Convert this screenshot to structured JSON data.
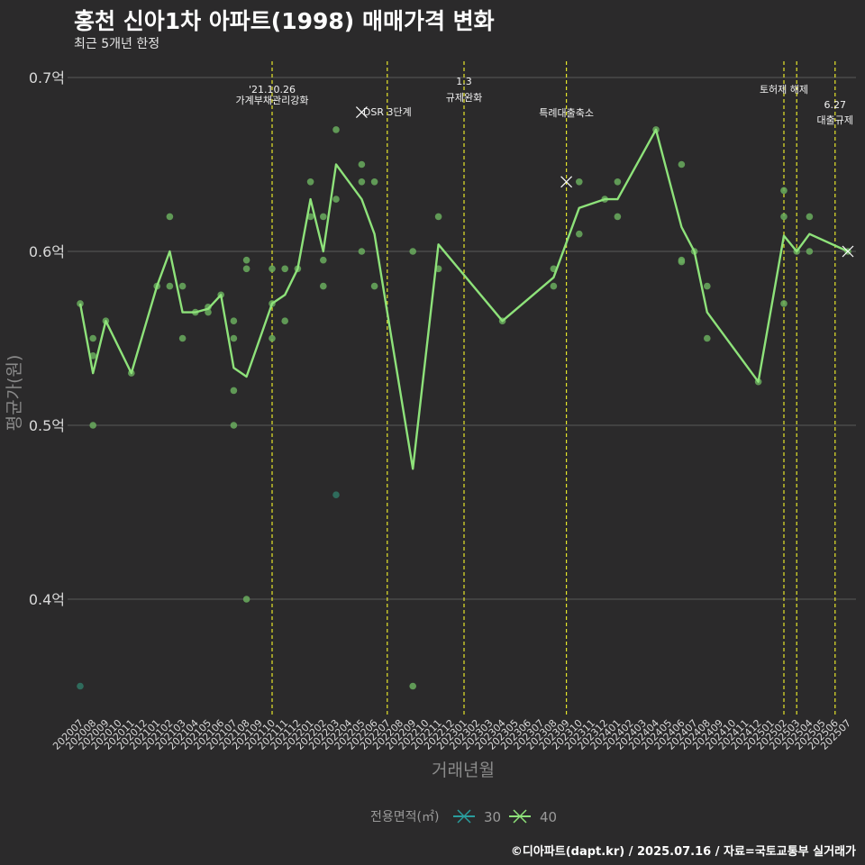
{
  "header": {
    "title": "홍천 신아1차 아파트(1998) 매매가격 변화",
    "subtitle": "최근 5개년 한정",
    "caption": "©디아파트(dapt.kr) / 2025.07.16 / 자료=국토교통부 실거래가"
  },
  "colors": {
    "background": "#2b2a2b",
    "grid": "#5a5a5a",
    "event_line": "#e6e62a",
    "series_30": "#2a9d9d",
    "series_40": "#8ee27a",
    "point_30": "#2f6f5f",
    "point_40": "#6aad5e"
  },
  "chart_data": {
    "type": "line",
    "title": "홍천 신아1차 아파트(1998) 매매가격 변화",
    "xlabel": "거래년월",
    "ylabel": "평균가(원)",
    "ylim": [
      0.33,
      0.71
    ],
    "yticks": [
      {
        "value": 0.4,
        "label": "0.4억"
      },
      {
        "value": 0.5,
        "label": "0.5억"
      },
      {
        "value": 0.6,
        "label": "0.6억"
      },
      {
        "value": 0.7,
        "label": "0.7억"
      }
    ],
    "categories": [
      "202007",
      "202008",
      "202009",
      "202010",
      "202011",
      "202012",
      "202101",
      "202102",
      "202103",
      "202104",
      "202105",
      "202106",
      "202107",
      "202108",
      "202109",
      "202110",
      "202111",
      "202112",
      "202201",
      "202202",
      "202203",
      "202204",
      "202205",
      "202206",
      "202207",
      "202208",
      "202209",
      "202210",
      "202211",
      "202212",
      "202301",
      "202302",
      "202303",
      "202304",
      "202305",
      "202306",
      "202307",
      "202308",
      "202309",
      "202310",
      "202311",
      "202312",
      "202401",
      "202402",
      "202403",
      "202404",
      "202405",
      "202406",
      "202407",
      "202408",
      "202409",
      "202410",
      "202411",
      "202412",
      "202501",
      "202502",
      "202503",
      "202504",
      "202505",
      "202506",
      "202507"
    ],
    "legend": {
      "title": "전용면적(㎡)",
      "items": [
        {
          "name": "30",
          "color": "#2a9d9d"
        },
        {
          "name": "40",
          "color": "#8ee27a"
        }
      ]
    },
    "series": [
      {
        "name": "40",
        "line": [
          [
            "202007",
            0.57
          ],
          [
            "202008",
            0.53
          ],
          [
            "202009",
            0.56
          ],
          [
            "202011",
            0.53
          ],
          [
            "202101",
            0.58
          ],
          [
            "202102",
            0.6
          ],
          [
            "202103",
            0.565
          ],
          [
            "202104",
            0.565
          ],
          [
            "202105",
            0.567
          ],
          [
            "202106",
            0.575
          ],
          [
            "202107",
            0.533
          ],
          [
            "202108",
            0.528
          ],
          [
            "202110",
            0.57
          ],
          [
            "202111",
            0.575
          ],
          [
            "202112",
            0.59
          ],
          [
            "202201",
            0.63
          ],
          [
            "202202",
            0.6
          ],
          [
            "202203",
            0.65
          ],
          [
            "202205",
            0.63
          ],
          [
            "202206",
            0.61
          ],
          [
            "202209",
            0.475
          ],
          [
            "202211",
            0.604
          ],
          [
            "202304",
            0.56
          ],
          [
            "202308",
            0.585
          ],
          [
            "202310",
            0.625
          ],
          [
            "202312",
            0.63
          ],
          [
            "202401",
            0.63
          ],
          [
            "202404",
            0.67
          ],
          [
            "202406",
            0.614
          ],
          [
            "202407",
            0.6
          ],
          [
            "202408",
            0.565
          ],
          [
            "202412",
            0.525
          ],
          [
            "202502",
            0.609
          ],
          [
            "202503",
            0.6
          ],
          [
            "202504",
            0.61
          ],
          [
            "202507",
            0.6
          ]
        ],
        "points": [
          [
            "202007",
            0.57
          ],
          [
            "202008",
            0.55
          ],
          [
            "202008",
            0.54
          ],
          [
            "202008",
            0.5
          ],
          [
            "202009",
            0.56
          ],
          [
            "202011",
            0.53
          ],
          [
            "202101",
            0.58
          ],
          [
            "202102",
            0.62
          ],
          [
            "202102",
            0.58
          ],
          [
            "202103",
            0.58
          ],
          [
            "202103",
            0.55
          ],
          [
            "202104",
            0.565
          ],
          [
            "202105",
            0.565
          ],
          [
            "202105",
            0.568
          ],
          [
            "202106",
            0.575
          ],
          [
            "202107",
            0.56
          ],
          [
            "202107",
            0.55
          ],
          [
            "202107",
            0.52
          ],
          [
            "202107",
            0.5
          ],
          [
            "202108",
            0.595
          ],
          [
            "202108",
            0.59
          ],
          [
            "202108",
            0.4
          ],
          [
            "202110",
            0.59
          ],
          [
            "202110",
            0.57
          ],
          [
            "202110",
            0.55
          ],
          [
            "202111",
            0.59
          ],
          [
            "202111",
            0.56
          ],
          [
            "202112",
            0.59
          ],
          [
            "202201",
            0.64
          ],
          [
            "202201",
            0.62
          ],
          [
            "202202",
            0.62
          ],
          [
            "202202",
            0.595
          ],
          [
            "202202",
            0.58
          ],
          [
            "202203",
            0.67
          ],
          [
            "202203",
            0.63
          ],
          [
            "202205",
            0.65
          ],
          [
            "202205",
            0.64
          ],
          [
            "202205",
            0.6
          ],
          [
            "202206",
            0.64
          ],
          [
            "202206",
            0.58
          ],
          [
            "202209",
            0.6
          ],
          [
            "202209",
            0.35
          ],
          [
            "202211",
            0.62
          ],
          [
            "202211",
            0.59
          ],
          [
            "202304",
            0.56
          ],
          [
            "202308",
            0.59
          ],
          [
            "202308",
            0.58
          ],
          [
            "202310",
            0.64
          ],
          [
            "202310",
            0.61
          ],
          [
            "202312",
            0.63
          ],
          [
            "202401",
            0.64
          ],
          [
            "202401",
            0.62
          ],
          [
            "202404",
            0.67
          ],
          [
            "202406",
            0.65
          ],
          [
            "202406",
            0.595
          ],
          [
            "202406",
            0.594
          ],
          [
            "202407",
            0.6
          ],
          [
            "202408",
            0.58
          ],
          [
            "202408",
            0.55
          ],
          [
            "202412",
            0.525
          ],
          [
            "202502",
            0.635
          ],
          [
            "202502",
            0.62
          ],
          [
            "202502",
            0.57
          ],
          [
            "202503",
            0.6
          ],
          [
            "202504",
            0.62
          ],
          [
            "202504",
            0.6
          ],
          [
            "202507",
            0.6
          ]
        ],
        "max_markers": [
          [
            "202205",
            0.68
          ],
          [
            "202309",
            0.64
          ],
          [
            "202507",
            0.6
          ]
        ]
      },
      {
        "name": "30",
        "points": [
          [
            "202007",
            0.35
          ],
          [
            "202203",
            0.46
          ]
        ]
      }
    ],
    "events": [
      {
        "x": "202110",
        "lines": [
          "'21.10.26",
          "가계부채관리강화"
        ]
      },
      {
        "x": "202207",
        "lines": [
          "DSR 3단계"
        ]
      },
      {
        "x": "202301",
        "lines": [
          "1.3",
          "규제완화"
        ]
      },
      {
        "x": "202309",
        "lines": [
          "특례대출축소"
        ]
      },
      {
        "x": "202502",
        "lines": [
          "토허제 해제"
        ]
      },
      {
        "x": "202503",
        "lines": []
      },
      {
        "x": "202506",
        "lines": [
          "6.27",
          "대출규제"
        ]
      }
    ]
  }
}
